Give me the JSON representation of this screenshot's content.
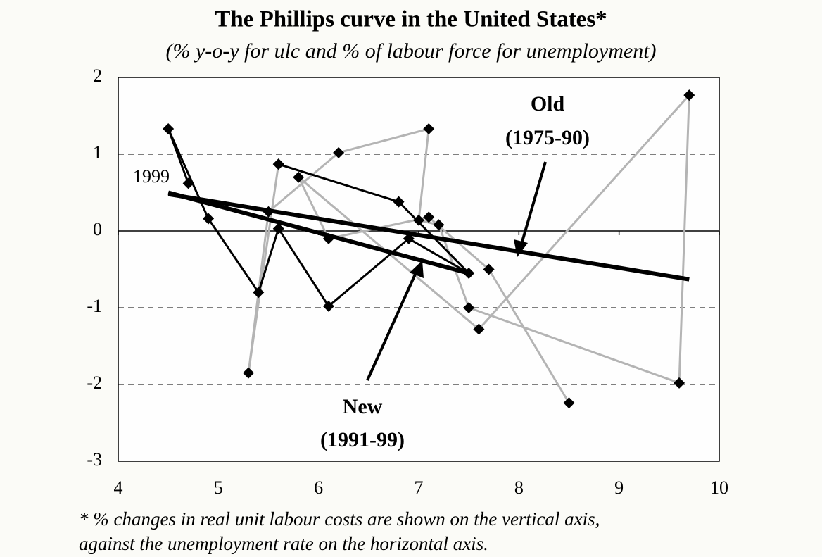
{
  "chart_data": {
    "type": "line",
    "title": "The Phillips curve in the United States*",
    "subtitle": "(% y-o-y for ulc and % of labour force for unemployment)",
    "xlim": [
      4,
      10
    ],
    "xticks": [
      4,
      5,
      6,
      7,
      8,
      9,
      10
    ],
    "ylim": [
      -3,
      2
    ],
    "yticks": [
      -3,
      -2,
      -1,
      0,
      1,
      2
    ],
    "grid": true,
    "marker_color": "#000000",
    "series": [
      {
        "color": "#b4b4b4",
        "x": [
          8.5,
          7.7,
          7.1,
          6.1,
          5.8,
          7.6,
          9.7,
          9.6,
          7.5,
          7.2,
          7.0,
          7.1,
          6.2,
          5.5,
          5.3,
          5.6
        ],
        "values": [
          -2.24,
          -0.5,
          0.18,
          -0.1,
          0.7,
          -1.28,
          1.77,
          -1.98,
          -1.0,
          0.08,
          0.14,
          1.33,
          1.02,
          0.25,
          -1.85,
          0.87
        ]
      },
      {
        "color": "#000000",
        "x": [
          5.6,
          6.8,
          7.5,
          6.9,
          6.1,
          5.6,
          5.4,
          4.9,
          4.5,
          4.7
        ],
        "values": [
          0.87,
          0.38,
          -0.55,
          -0.1,
          -0.98,
          0.03,
          -0.8,
          0.16,
          1.33,
          0.62
        ]
      }
    ],
    "trend_lines": [
      {
        "color": "#000000",
        "x": [
          4.5,
          9.7
        ],
        "values": [
          0.48,
          -0.63
        ]
      },
      {
        "color": "#000000",
        "x": [
          4.5,
          7.5
        ],
        "values": [
          0.5,
          -0.55
        ]
      }
    ],
    "annotations": [
      "Old",
      "(1975-90)",
      "New",
      "(1991-99)",
      "1999"
    ],
    "footnote": [
      "* % changes in real unit labour costs are shown on the vertical axis,",
      "against the unemployment rate on the horizontal axis."
    ]
  }
}
